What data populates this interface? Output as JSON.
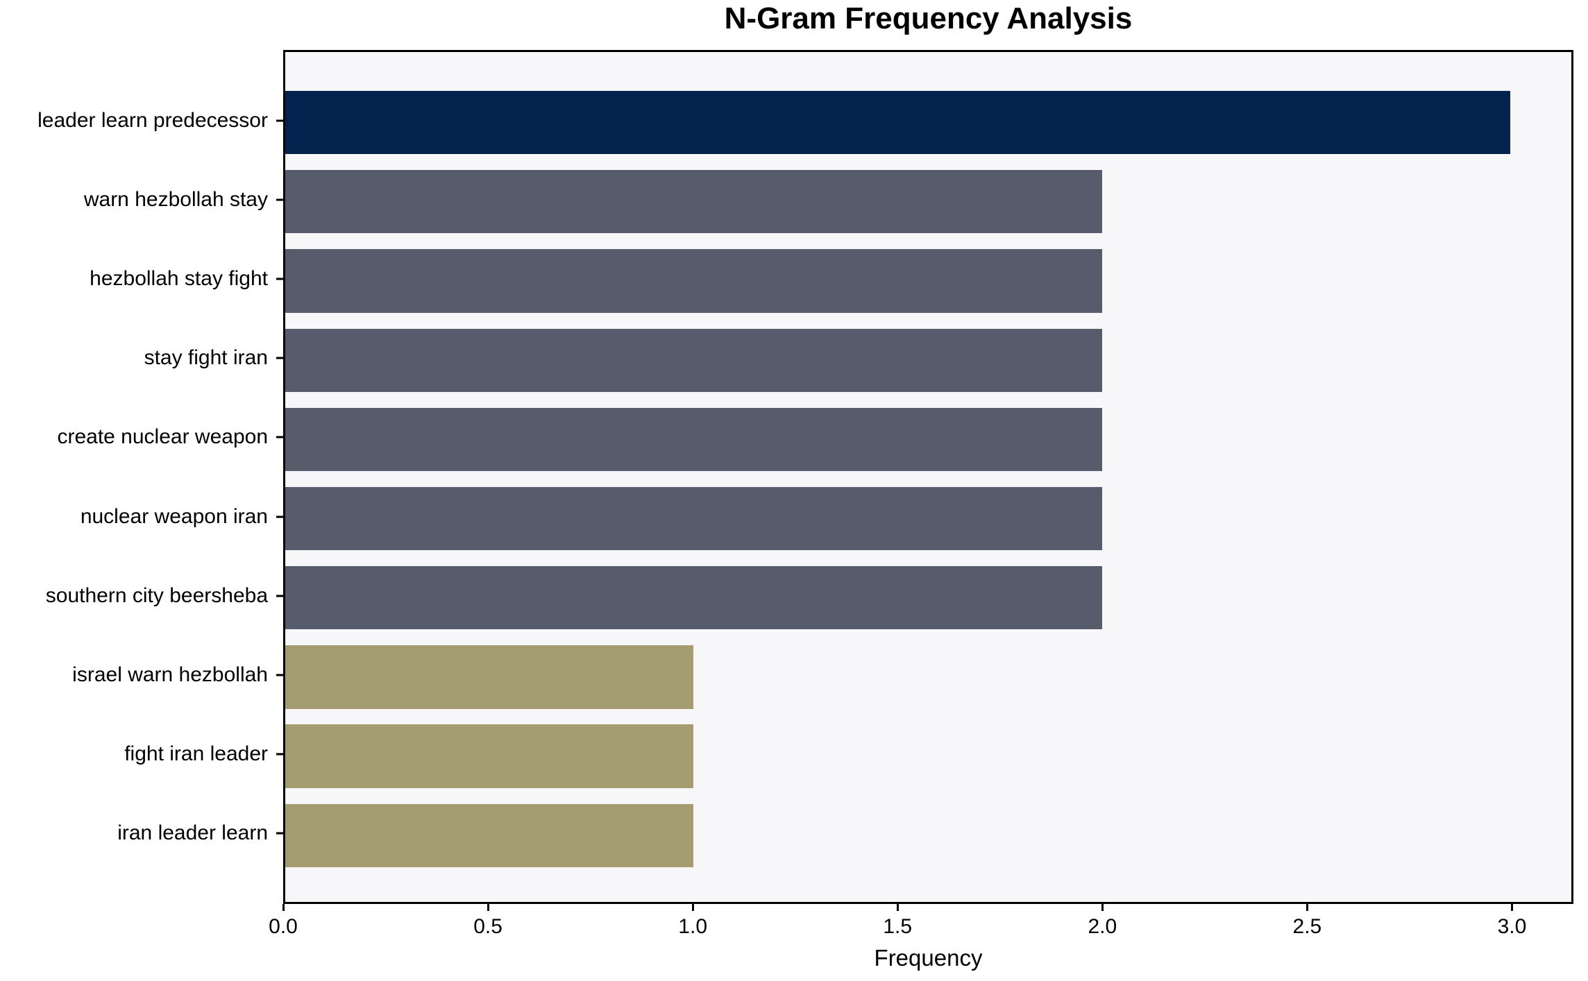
{
  "chart_data": {
    "type": "bar",
    "orientation": "horizontal",
    "title": "N-Gram Frequency Analysis",
    "xlabel": "Frequency",
    "ylabel": "",
    "categories": [
      "leader learn predecessor",
      "warn hezbollah stay",
      "hezbollah stay fight",
      "stay fight iran",
      "create nuclear weapon",
      "nuclear weapon iran",
      "southern city beersheba",
      "israel warn hezbollah",
      "fight iran leader",
      "iran leader learn"
    ],
    "values": [
      3,
      2,
      2,
      2,
      2,
      2,
      2,
      1,
      1,
      1
    ],
    "bar_colors": [
      "#02234d",
      "#565c6b",
      "#565c6b",
      "#565c6b",
      "#565c6b",
      "#565c6b",
      "#565c6b",
      "#a49d72",
      "#a49d72",
      "#a49d72"
    ],
    "xlim": [
      0,
      3.15
    ],
    "xtick_values": [
      0,
      0.5,
      1,
      1.5,
      2,
      2.5,
      3
    ],
    "xtick_labels": [
      "0.0",
      "0.5",
      "1.0",
      "1.5",
      "2.0",
      "2.5",
      "3.0"
    ],
    "grid": false,
    "legend": null,
    "plot_background": "#f7f7f9",
    "figure_background": "#ffffff",
    "axis_color": "#000000"
  }
}
